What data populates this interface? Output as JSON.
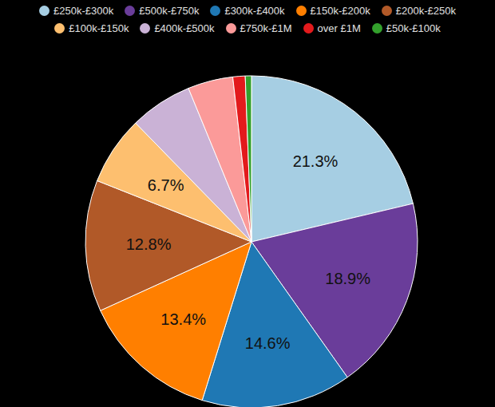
{
  "chart_data": {
    "type": "pie",
    "categories": [
      "£250k-£300k",
      "£500k-£750k",
      "£300k-£400k",
      "£150k-£200k",
      "£200k-£250k",
      "£100k-£150k",
      "£400k-£500k",
      "£750k-£1M",
      "over £1M",
      "£50k-£100k"
    ],
    "values": [
      21.3,
      18.9,
      14.6,
      13.4,
      12.8,
      6.7,
      6.1,
      4.4,
      1.2,
      0.6
    ],
    "colors": [
      "#a6cee3",
      "#6a3d9a",
      "#1f78b4",
      "#ff7f00",
      "#b15928",
      "#fdbf6f",
      "#cab2d6",
      "#fb9a99",
      "#e31a1c",
      "#33a02c"
    ],
    "data_labels": true,
    "value_labels": [
      "21.3%",
      "18.9%",
      "14.6%",
      "13.4%",
      "12.8%",
      "6.7%",
      null,
      null,
      null,
      null
    ],
    "legend": "top"
  }
}
